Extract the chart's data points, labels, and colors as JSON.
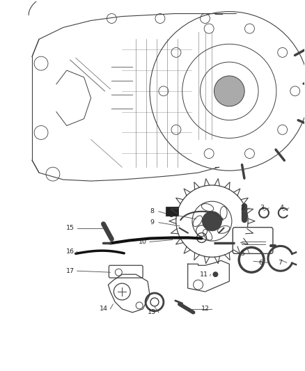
{
  "bg_color": "#ffffff",
  "line_color": "#404040",
  "label_color": "#222222",
  "fig_w": 4.38,
  "fig_h": 5.33,
  "dpi": 100
}
